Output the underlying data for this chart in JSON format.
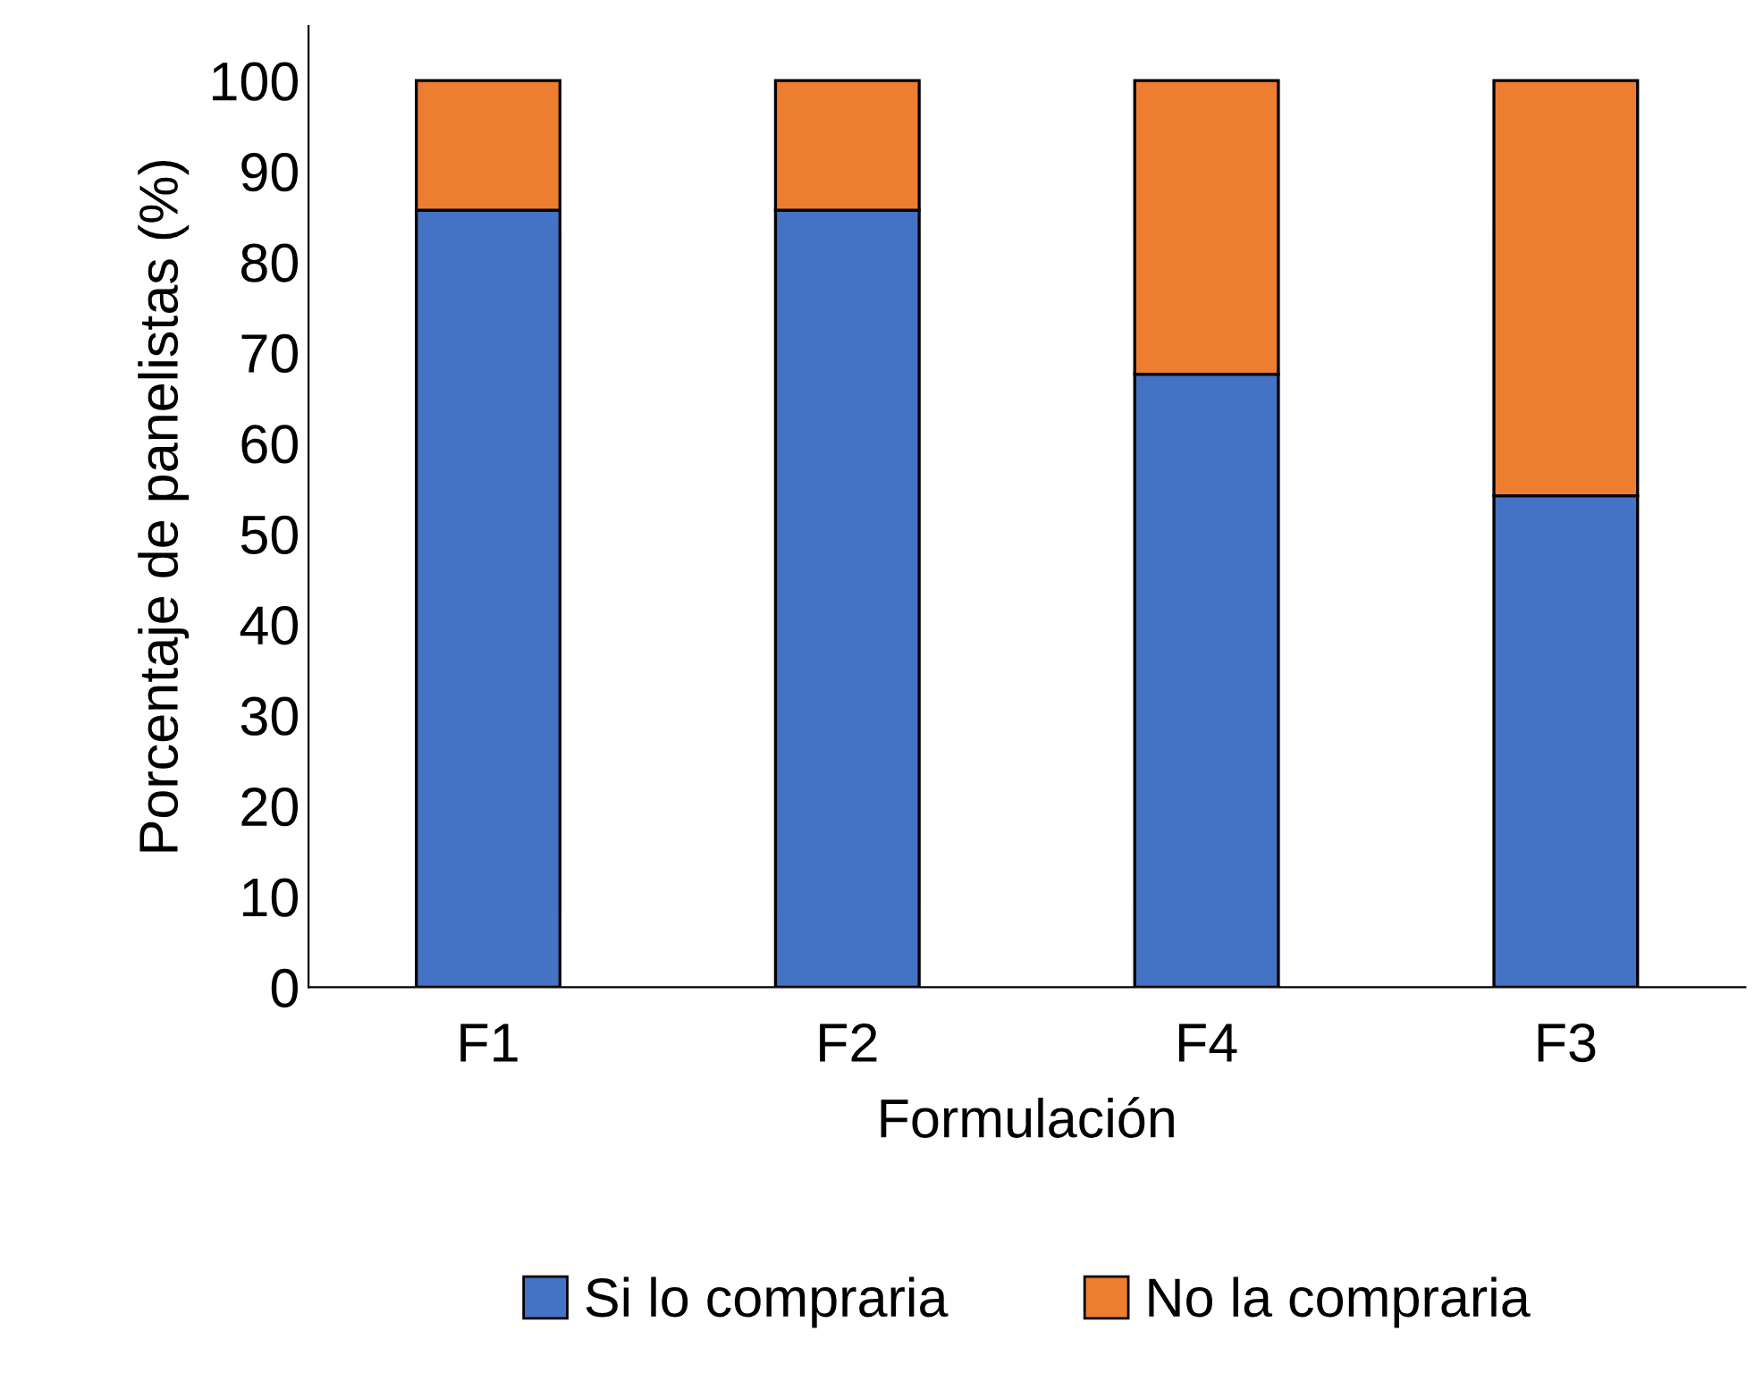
{
  "chart_data": {
    "type": "bar",
    "stacked": true,
    "xlabel": "Formulación",
    "ylabel": "Porcentaje de panelistas (%)",
    "categories": [
      "F1",
      "F2",
      "F4",
      "F3"
    ],
    "series": [
      {
        "name": "Si lo compraria",
        "color": "#4472c4",
        "values": [
          85.7,
          85.7,
          67.6,
          54.2
        ]
      },
      {
        "name": "No la compraria",
        "color": "#ed7d31",
        "values": [
          14.3,
          14.3,
          32.4,
          45.8
        ]
      }
    ],
    "ylim": [
      0,
      106
    ],
    "yticks": [
      0,
      10,
      20,
      30,
      40,
      50,
      60,
      70,
      80,
      90,
      100
    ],
    "grid": false,
    "legend": "bottom"
  }
}
